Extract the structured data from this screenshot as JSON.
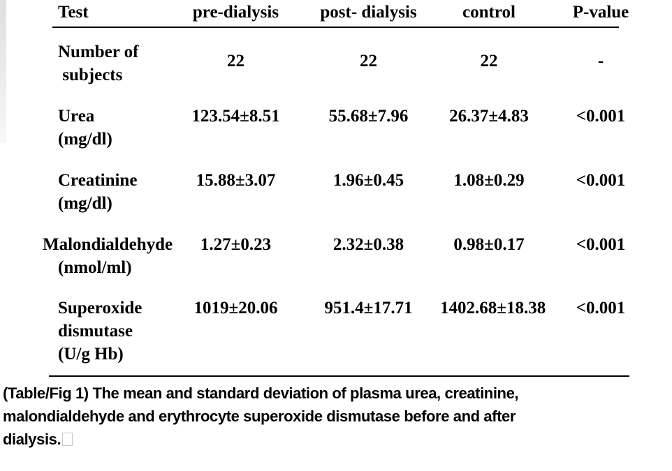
{
  "table": {
    "headers": {
      "test": "Test",
      "pre_dialysis": "pre-dialysis",
      "post_dialysis": "post- dialysis",
      "control": "control",
      "p_value": "P-value"
    },
    "rows": [
      {
        "test": "Number of\n subjects",
        "pre_dialysis": "22",
        "post_dialysis": "22",
        "control": "22",
        "p_value": "-"
      },
      {
        "test": "Urea\n(mg/dl)",
        "pre_dialysis": "123.54±8.51",
        "post_dialysis": "55.68±7.96",
        "control": "26.37±4.83",
        "p_value": "<0.001"
      },
      {
        "test": "Creatinine\n(mg/dl)",
        "pre_dialysis": "15.88±3.07",
        "post_dialysis": "1.96±0.45",
        "control": "1.08±0.29",
        "p_value": "<0.001"
      },
      {
        "test": "Malondialdehyde\n(nmol/ml)",
        "pre_dialysis": "1.27±0.23",
        "post_dialysis": "2.32±0.38",
        "control": "0.98±0.17",
        "p_value": "<0.001"
      },
      {
        "test": "Superoxide\ndismutase\n(U/g Hb)",
        "pre_dialysis": "1019±20.06",
        "post_dialysis": "951.4±17.71",
        "control": "1402.68±18.38",
        "p_value": "<0.001"
      }
    ]
  },
  "caption": {
    "lines": [
      "(Table/Fig 1) The mean and standard deviation of plasma urea, creatinine,",
      "malondialdehyde and erythrocyte superoxide dismutase before and after",
      "dialysis."
    ]
  },
  "colors": {
    "background": "#ffffff",
    "text": "#000000",
    "rule": "#000000"
  }
}
